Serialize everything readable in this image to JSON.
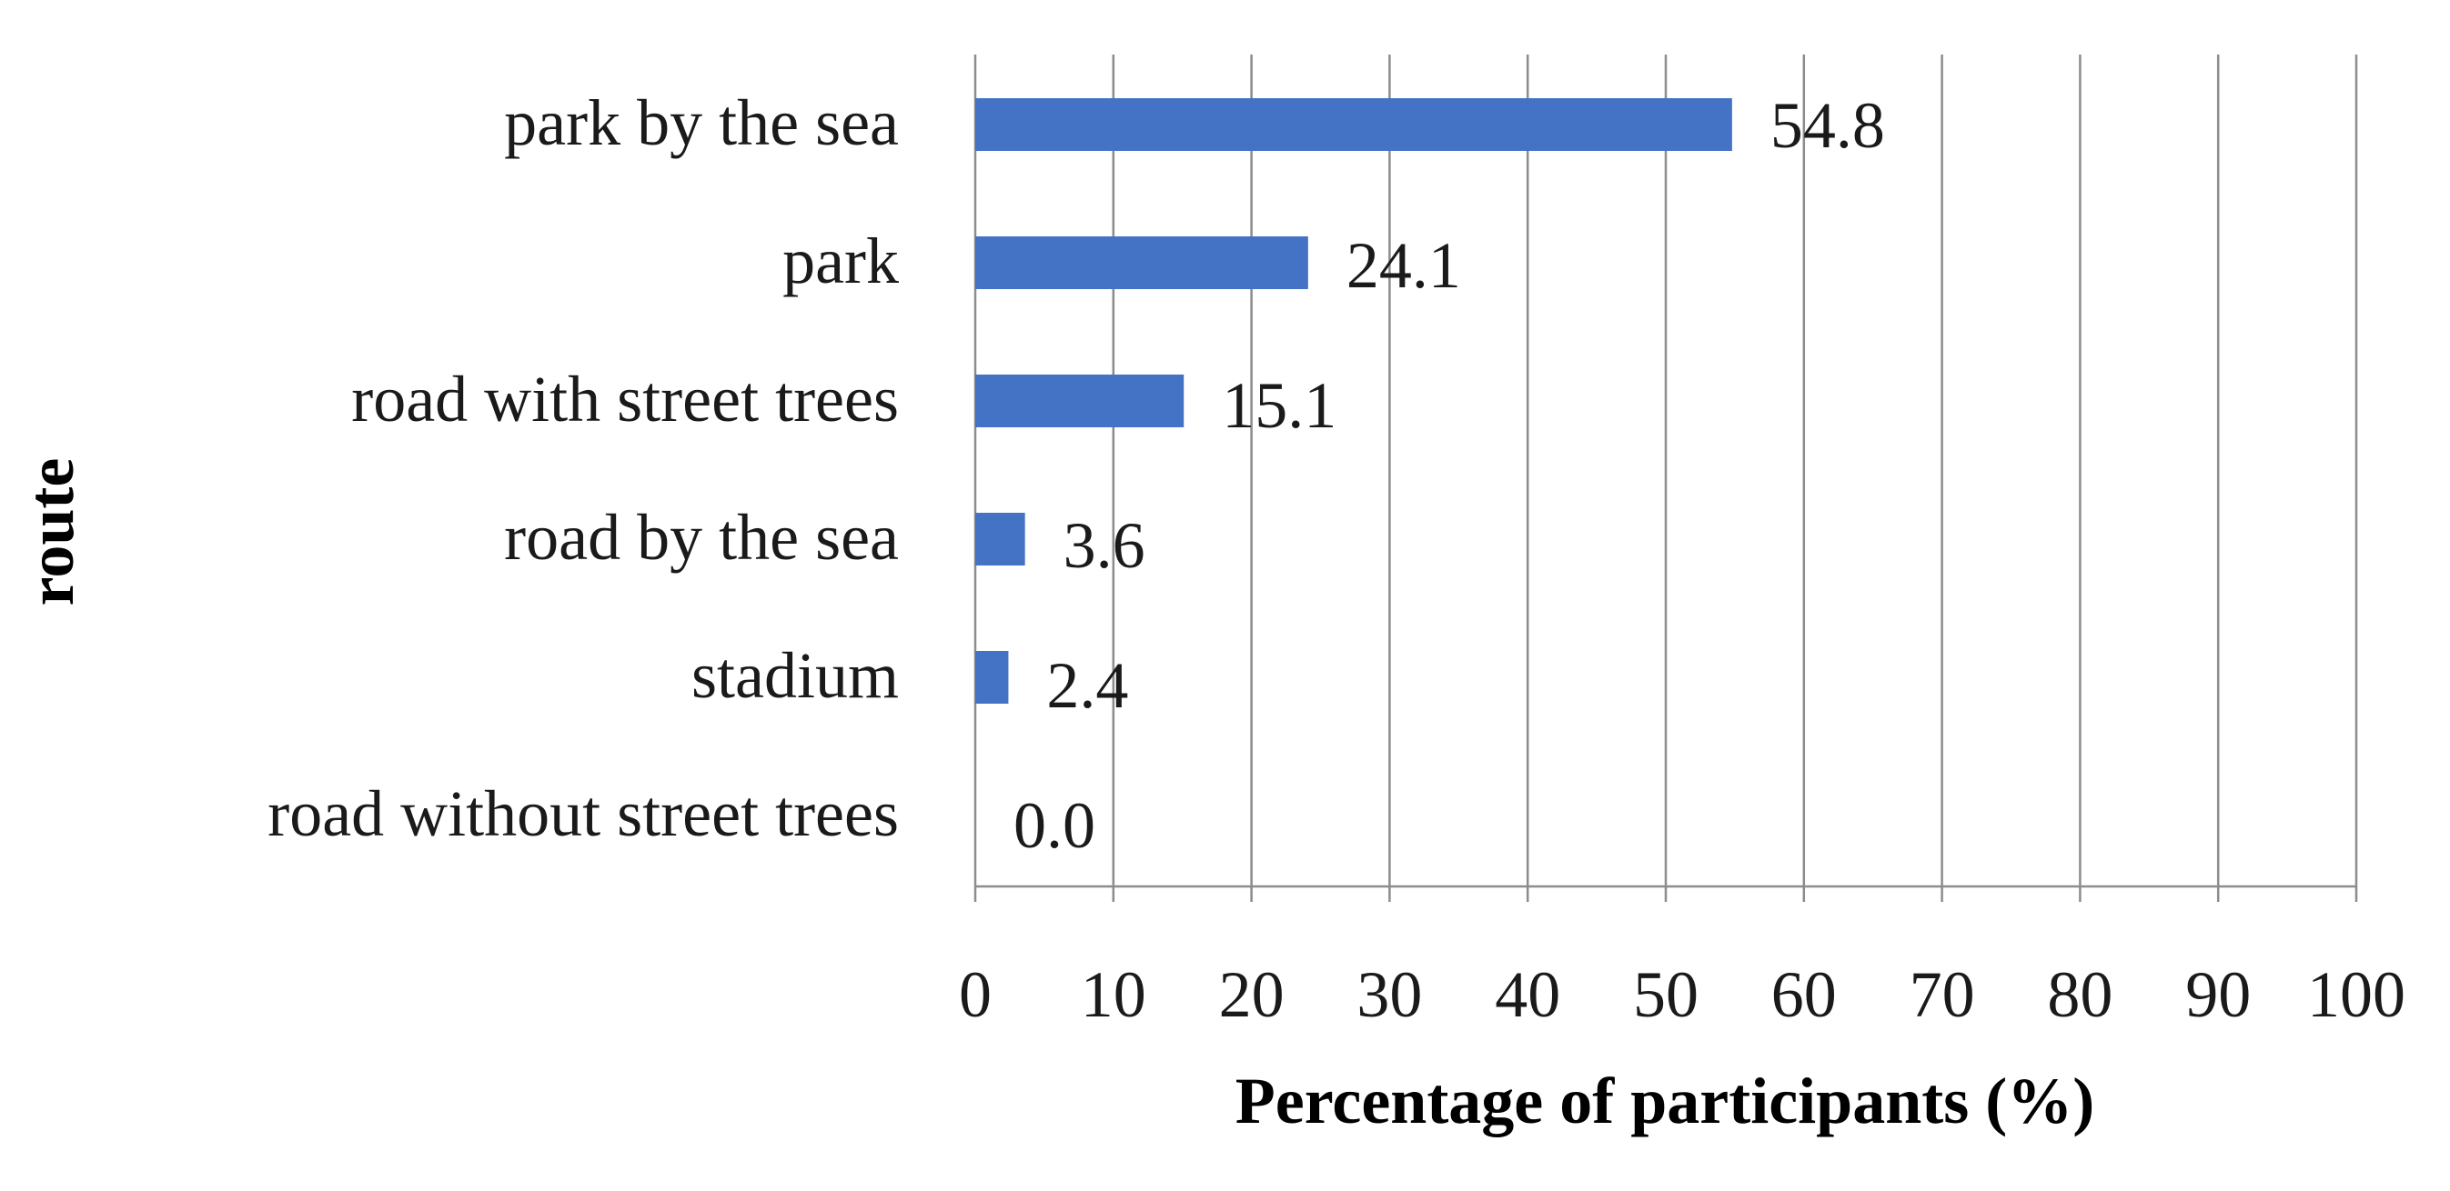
{
  "chart_data": {
    "type": "bar",
    "orientation": "horizontal",
    "categories": [
      "park by the sea",
      "park",
      "road with street trees",
      "road by the sea",
      "stadium",
      "road without street trees"
    ],
    "values": [
      54.8,
      24.1,
      15.1,
      3.6,
      2.4,
      0.0
    ],
    "data_labels": [
      "54.8",
      "24.1",
      "15.1",
      "3.6",
      "2.4",
      "0.0"
    ],
    "title": "",
    "xlabel": "Percentage of participants (%)",
    "ylabel": "route",
    "xlim": [
      0,
      100
    ],
    "xticks": [
      0,
      10,
      20,
      30,
      40,
      50,
      60,
      70,
      80,
      90,
      100
    ],
    "xtick_labels": [
      "0",
      "10",
      "20",
      "30",
      "40",
      "50",
      "60",
      "70",
      "80",
      "90",
      "100"
    ],
    "grid": "vertical",
    "legend": "none",
    "bar_color": "#4472C4",
    "grid_color": "#8c8c8c"
  }
}
